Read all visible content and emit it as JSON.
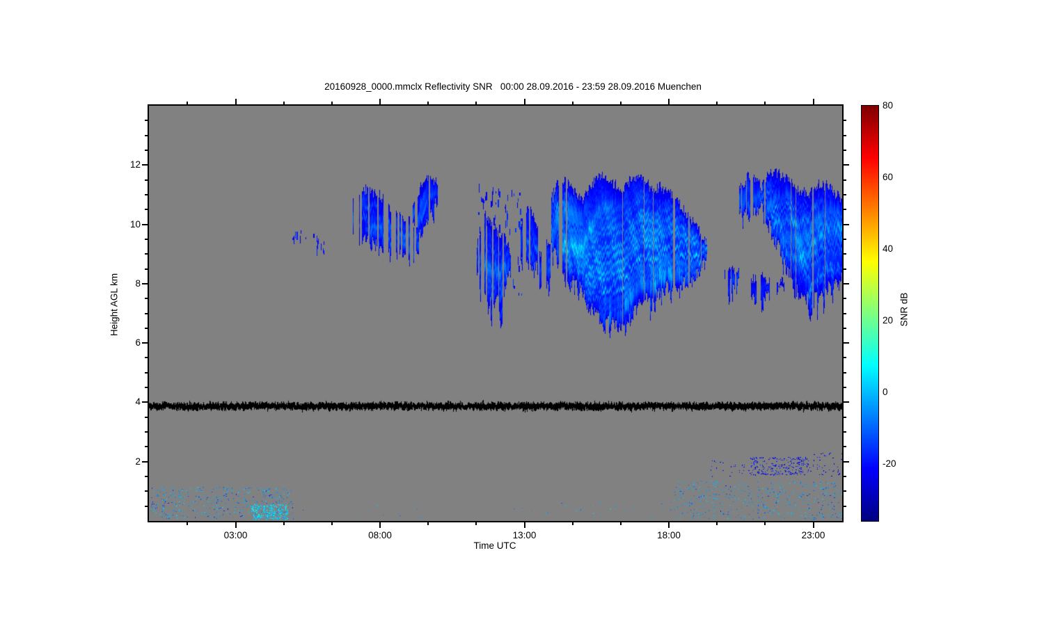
{
  "chart_data": {
    "type": "heatmap",
    "title": "20160928_0000.mmclx Reflectivity SNR   00:00 28.09.2016 - 23:59 28.09.2016 Muenchen",
    "station": "Muenchen",
    "date": "28.09.2016",
    "time_span": "00:00 - 23:59",
    "xlabel": "Time UTC",
    "ylabel": "Height AGL km",
    "x_range_hours": [
      0,
      24
    ],
    "x_major_ticks": [
      {
        "hour": 3,
        "label": "03:00"
      },
      {
        "hour": 8,
        "label": "08:00"
      },
      {
        "hour": 13,
        "label": "13:00"
      },
      {
        "hour": 18,
        "label": "18:00"
      },
      {
        "hour": 23,
        "label": "23:00"
      }
    ],
    "x_minor_tick_hours": [
      1.3333,
      4.6667,
      6.3333,
      9.6667,
      11.3333,
      14.6667,
      16.3333,
      19.6667,
      21.3333
    ],
    "y_range_km": [
      0,
      14
    ],
    "y_major_ticks": [
      2,
      4,
      6,
      8,
      10,
      12
    ],
    "y_minor_step_km": 0.5,
    "grid": false,
    "background_color": "#818181",
    "frame_color": "#000000",
    "colorbar": {
      "label": "SNR dB",
      "min": -36,
      "max": 80,
      "ticks": [
        80,
        60,
        40,
        20,
        0,
        -20
      ],
      "colormap": "jet",
      "position": "right"
    },
    "noise_floor_line": {
      "height_km": 3.88,
      "thickness_km": 0.16,
      "color": "#000000",
      "description": "black ragged instrument noise band across all times"
    },
    "clouds": [
      {
        "name": "cirrus-wisp-0500",
        "type": "wisp",
        "density": 0.22,
        "core_snr": -16,
        "edge_snr": -26,
        "envelope": [
          [
            4.95,
            9.45,
            9.85
          ],
          [
            5.5,
            9.4,
            9.75
          ]
        ]
      },
      {
        "name": "cirrus-wisp-0545",
        "type": "wisp",
        "density": 0.28,
        "core_snr": -16,
        "edge_snr": -26,
        "envelope": [
          [
            5.7,
            9.15,
            9.7
          ],
          [
            6.1,
            9.1,
            9.55
          ]
        ]
      },
      {
        "name": "cirrus-0700-0930",
        "type": "mass",
        "core_snr": -8,
        "edge_snr": -27,
        "gappiness": 0.45,
        "tilt": 1.6,
        "envelope": [
          [
            6.95,
            10.0,
            10.75
          ],
          [
            7.15,
            9.7,
            11.15
          ],
          [
            7.45,
            9.5,
            11.2
          ],
          [
            7.75,
            9.35,
            11.1
          ],
          [
            8.05,
            9.2,
            10.9
          ],
          [
            8.35,
            9.1,
            10.6
          ],
          [
            8.65,
            9.0,
            10.3
          ],
          [
            9.0,
            8.95,
            10.1
          ],
          [
            9.35,
            9.05,
            9.9
          ]
        ]
      },
      {
        "name": "cirrus-hook-0910-1000",
        "type": "mass",
        "core_snr": -12,
        "edge_snr": -27,
        "gappiness": 0.22,
        "tilt": 1.2,
        "envelope": [
          [
            9.15,
            10.15,
            10.8
          ],
          [
            9.3,
            9.35,
            11.05
          ],
          [
            9.5,
            10.0,
            11.45
          ],
          [
            9.7,
            10.5,
            11.65
          ],
          [
            9.9,
            10.7,
            11.5
          ],
          [
            10.05,
            10.9,
            11.25
          ]
        ]
      },
      {
        "name": "cloud-1120-1230",
        "type": "mass",
        "core_snr": -4,
        "edge_snr": -27,
        "gappiness": 0.28,
        "tilt": 1.8,
        "envelope": [
          [
            11.35,
            8.55,
            9.3
          ],
          [
            11.5,
            7.95,
            10.0
          ],
          [
            11.65,
            7.5,
            10.3
          ],
          [
            11.85,
            7.3,
            10.0
          ],
          [
            12.05,
            7.55,
            9.8
          ],
          [
            12.2,
            6.8,
            9.6
          ],
          [
            12.35,
            8.0,
            9.5
          ],
          [
            12.5,
            8.5,
            9.1
          ]
        ]
      },
      {
        "name": "wisps-above-1140",
        "type": "wisp",
        "density": 0.12,
        "core_snr": -16,
        "edge_snr": -27,
        "envelope": [
          [
            11.4,
            9.9,
            11.4
          ],
          [
            12.55,
            9.8,
            11.2
          ]
        ]
      },
      {
        "name": "wisps-1230-1300",
        "type": "wisp",
        "density": 0.055,
        "core_snr": -14,
        "edge_snr": -27,
        "envelope": [
          [
            12.55,
            7.0,
            11.3
          ],
          [
            12.95,
            7.4,
            11.0
          ]
        ]
      },
      {
        "name": "cloud-1250-1330",
        "type": "mass",
        "core_snr": -7,
        "edge_snr": -27,
        "gappiness": 0.3,
        "tilt": 1.5,
        "envelope": [
          [
            12.85,
            9.15,
            10.0
          ],
          [
            13.05,
            8.6,
            10.5
          ],
          [
            13.25,
            8.45,
            10.45
          ],
          [
            13.45,
            8.6,
            9.9
          ]
        ]
      },
      {
        "name": "cloud-1330-1400",
        "type": "mass",
        "core_snr": -10,
        "edge_snr": -27,
        "gappiness": 0.3,
        "tilt": 1.5,
        "envelope": [
          [
            13.5,
            8.05,
            9.0
          ],
          [
            13.7,
            7.95,
            9.3
          ],
          [
            13.95,
            8.1,
            9.2
          ]
        ]
      },
      {
        "name": "main-complex-1400-1915",
        "type": "mass",
        "core_snr": 6,
        "edge_snr": -27,
        "gappiness": 0.12,
        "tilt": 2.2,
        "envelope": [
          [
            13.95,
            9.6,
            10.9
          ],
          [
            14.15,
            8.7,
            11.45
          ],
          [
            14.45,
            8.05,
            11.4
          ],
          [
            14.75,
            8.0,
            11.0
          ],
          [
            15.0,
            7.75,
            10.75
          ],
          [
            15.2,
            7.3,
            11.15
          ],
          [
            15.45,
            7.0,
            11.55
          ],
          [
            15.7,
            6.9,
            11.7
          ],
          [
            16.0,
            6.8,
            11.5
          ],
          [
            16.3,
            6.62,
            11.15
          ],
          [
            16.6,
            6.7,
            11.4
          ],
          [
            16.9,
            7.3,
            11.6
          ],
          [
            17.15,
            7.55,
            11.5
          ],
          [
            17.45,
            7.6,
            11.15
          ],
          [
            17.7,
            7.75,
            11.3
          ],
          [
            18.0,
            7.9,
            11.1
          ],
          [
            18.3,
            7.95,
            10.7
          ],
          [
            18.6,
            8.05,
            10.4
          ],
          [
            18.9,
            8.3,
            10.0
          ],
          [
            19.15,
            8.6,
            9.6
          ],
          [
            19.3,
            8.9,
            9.3
          ]
        ]
      },
      {
        "name": "blob-2000",
        "type": "mass",
        "core_snr": -16,
        "edge_snr": -28,
        "gappiness": 0.2,
        "tilt": 1.0,
        "envelope": [
          [
            19.95,
            7.95,
            8.5
          ],
          [
            20.2,
            7.85,
            8.55
          ],
          [
            20.5,
            8.0,
            8.4
          ]
        ]
      },
      {
        "name": "blob-2050",
        "type": "mass",
        "core_snr": -16,
        "edge_snr": -28,
        "gappiness": 0.2,
        "tilt": 1.0,
        "envelope": [
          [
            20.85,
            7.6,
            8.2
          ],
          [
            21.1,
            7.55,
            8.25
          ],
          [
            21.45,
            7.7,
            8.1
          ]
        ]
      },
      {
        "name": "blob-2145",
        "type": "mass",
        "core_snr": -18,
        "edge_snr": -28,
        "gappiness": 0.25,
        "tilt": 1.0,
        "envelope": [
          [
            21.75,
            7.7,
            8.05
          ],
          [
            22.0,
            7.75,
            8.0
          ]
        ]
      },
      {
        "name": "anvil-2030-2110",
        "type": "mass",
        "core_snr": -10,
        "edge_snr": -27,
        "gappiness": 0.18,
        "tilt": 1.2,
        "envelope": [
          [
            20.45,
            10.45,
            11.15
          ],
          [
            20.65,
            10.3,
            11.55
          ],
          [
            20.9,
            10.35,
            11.6
          ],
          [
            21.15,
            10.5,
            11.35
          ]
        ]
      },
      {
        "name": "complex-2110-2400",
        "type": "mass",
        "core_snr": 2,
        "edge_snr": -27,
        "gappiness": 0.12,
        "tilt": 2.2,
        "envelope": [
          [
            21.2,
            10.7,
            11.25
          ],
          [
            21.45,
            10.0,
            11.8
          ],
          [
            21.7,
            9.4,
            11.75
          ],
          [
            22.0,
            8.7,
            11.55
          ],
          [
            22.3,
            8.1,
            11.35
          ],
          [
            22.6,
            7.6,
            11.1
          ],
          [
            22.9,
            7.4,
            11.05
          ],
          [
            23.2,
            7.6,
            11.35
          ],
          [
            23.5,
            7.85,
            11.3
          ],
          [
            23.75,
            7.95,
            11.05
          ],
          [
            24.0,
            8.2,
            10.8
          ]
        ]
      }
    ],
    "speckle_regions": [
      {
        "name": "boundary-layer-early",
        "t": [
          0.05,
          5.0
        ],
        "h": [
          0.08,
          1.15
        ],
        "density": 0.1,
        "snr": [
          -22,
          4
        ],
        "bias": "high"
      },
      {
        "name": "boundary-layer-early-dense",
        "t": [
          3.55,
          4.8
        ],
        "h": [
          0.05,
          0.55
        ],
        "density": 0.6,
        "snr": [
          -8,
          8
        ],
        "bias": "high"
      },
      {
        "name": "midday-sparse",
        "t": [
          5.3,
          9.5
        ],
        "h": [
          0.1,
          0.6
        ],
        "density": 0.006,
        "snr": [
          -18,
          2
        ],
        "bias": "high"
      },
      {
        "name": "afternoon-sparse",
        "t": [
          12.5,
          18.2
        ],
        "h": [
          0.15,
          0.7
        ],
        "density": 0.01,
        "snr": [
          -15,
          3
        ],
        "bias": "high"
      },
      {
        "name": "boundary-layer-evening",
        "t": [
          18.2,
          24.0
        ],
        "h": [
          0.05,
          1.35
        ],
        "density": 0.08,
        "snr": [
          -20,
          3
        ],
        "bias": "high"
      },
      {
        "name": "elevated-layer-2km",
        "t": [
          20.8,
          22.85
        ],
        "h": [
          1.55,
          2.15
        ],
        "density": 0.22,
        "snr": [
          -28,
          -16
        ],
        "bias": "flat"
      },
      {
        "name": "elevated-layer-2km-tail",
        "t": [
          22.85,
          24.0
        ],
        "h": [
          1.5,
          2.3
        ],
        "density": 0.05,
        "snr": [
          -28,
          -18
        ],
        "bias": "flat"
      },
      {
        "name": "elevated-layer-2km-onset",
        "t": [
          19.4,
          20.8
        ],
        "h": [
          1.5,
          2.05
        ],
        "density": 0.035,
        "snr": [
          -26,
          -16
        ],
        "bias": "flat"
      }
    ]
  }
}
